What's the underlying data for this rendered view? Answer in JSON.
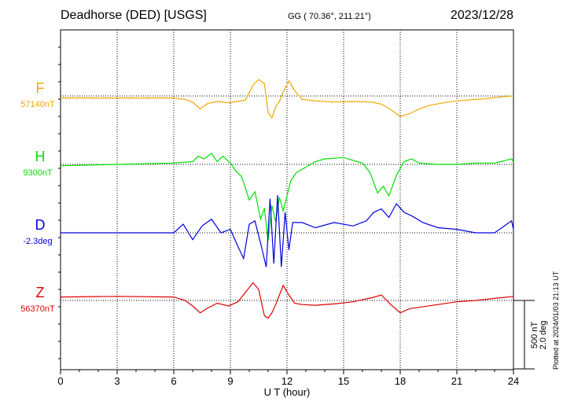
{
  "header": {
    "station": "Deadhorse (DED)  [USGS]",
    "coords": "GG ( 70.36°, 211.21°)",
    "date": "2023/12/28"
  },
  "footer": {
    "plotted": "Plotted at 2024/01/03 21:13 UT"
  },
  "chart_data": {
    "type": "line",
    "xlabel": "U T (hour)",
    "xlim": [
      0,
      24
    ],
    "xticks": [
      "0",
      "3",
      "6",
      "9",
      "12",
      "15",
      "18",
      "21",
      "24"
    ],
    "grid": "dotted vertical lines every 3 hours",
    "scale_bar": [
      "500 nT",
      "2.0 deg"
    ],
    "scale_bar_value_nT": 500,
    "scale_bar_value_deg": 2.0,
    "series": [
      {
        "name": "F",
        "baseline_label": "57140nT",
        "baseline": 57140,
        "unit": "nT",
        "color": "#f0a800",
        "x": [
          0,
          6,
          6.6,
          7,
          7.4,
          7.8,
          8.3,
          8.9,
          9.4,
          9.8,
          10.2,
          10.5,
          10.8,
          11,
          11.2,
          11.4,
          11.6,
          11.8,
          12.1,
          12.4,
          12.8,
          13.5,
          14.5,
          15.5,
          16.5,
          17,
          17.5,
          18,
          18.5,
          19,
          19.5,
          20.5,
          21.5,
          22.5,
          23.5,
          24
        ],
        "values": [
          -15,
          -15,
          -25,
          -45,
          -95,
          -55,
          -40,
          -50,
          -40,
          -30,
          80,
          120,
          90,
          -120,
          -160,
          -80,
          -40,
          30,
          110,
          40,
          -25,
          -35,
          -45,
          -40,
          -45,
          -60,
          -100,
          -150,
          -130,
          -95,
          -70,
          -45,
          -30,
          -20,
          -5,
          0
        ]
      },
      {
        "name": "H",
        "baseline_label": "9300nT",
        "baseline": 9300,
        "unit": "nT",
        "color": "#00e000",
        "x": [
          0,
          3,
          6,
          7,
          7.3,
          7.6,
          8,
          8.3,
          8.6,
          9,
          9.3,
          9.6,
          10,
          10.3,
          10.6,
          10.8,
          11,
          11.2,
          11.4,
          11.6,
          11.8,
          12,
          12.2,
          12.5,
          13,
          13.5,
          14,
          15,
          16,
          16.4,
          16.8,
          17.1,
          17.4,
          17.8,
          18.2,
          18.6,
          19,
          20,
          21,
          22,
          23,
          23.9,
          24
        ],
        "values": [
          -10,
          0,
          10,
          20,
          60,
          40,
          80,
          20,
          60,
          10,
          -50,
          -90,
          -260,
          -200,
          -400,
          -320,
          -560,
          -300,
          -420,
          -240,
          -340,
          -230,
          -120,
          -60,
          -20,
          20,
          40,
          50,
          10,
          -60,
          -210,
          -160,
          -230,
          -80,
          20,
          40,
          10,
          0,
          0,
          10,
          10,
          40,
          20
        ]
      },
      {
        "name": "D",
        "baseline_label": "-2.3deg",
        "baseline": -2.3,
        "unit": "deg",
        "color": "#0000e0",
        "x": [
          0,
          3,
          6,
          6.5,
          7,
          7.5,
          8,
          8.5,
          9,
          9.4,
          9.7,
          10,
          10.3,
          10.6,
          10.9,
          11.1,
          11.3,
          11.5,
          11.7,
          11.9,
          12.1,
          12.3,
          12.8,
          13.5,
          14.5,
          15.5,
          16.2,
          16.6,
          17,
          17.4,
          17.8,
          18.2,
          18.6,
          19.2,
          20,
          21,
          22,
          23,
          23.9,
          24
        ],
        "values": [
          0,
          0,
          0,
          0.25,
          -0.2,
          0.2,
          0.4,
          0,
          0.1,
          -0.4,
          -0.75,
          0.25,
          0.35,
          -0.3,
          -1.0,
          1.0,
          -0.9,
          1.1,
          -1.0,
          0.6,
          -0.5,
          0.3,
          0.3,
          0.15,
          0.3,
          0.2,
          0.35,
          0.6,
          0.7,
          0.45,
          0.85,
          0.6,
          0.5,
          0.3,
          0.15,
          0.1,
          0,
          0,
          0.35,
          0.1
        ]
      },
      {
        "name": "Z",
        "baseline_label": "56370nT",
        "baseline": 56370,
        "unit": "nT",
        "color": "#e00000",
        "x": [
          0,
          3,
          6,
          6.6,
          7,
          7.4,
          7.8,
          8.3,
          8.9,
          9.4,
          9.8,
          10.2,
          10.5,
          10.8,
          11,
          11.2,
          11.4,
          11.6,
          11.8,
          12.1,
          12.4,
          12.8,
          13.5,
          14.5,
          15.5,
          16.5,
          17,
          17.5,
          18,
          18.5,
          19,
          20,
          21,
          22,
          23,
          24
        ],
        "values": [
          25,
          30,
          25,
          0,
          -40,
          -90,
          -55,
          -20,
          -40,
          -10,
          60,
          130,
          80,
          -110,
          -130,
          -90,
          -30,
          40,
          110,
          40,
          -20,
          -30,
          -35,
          -25,
          -10,
          20,
          40,
          -30,
          -90,
          -60,
          -50,
          -30,
          -10,
          0,
          15,
          30
        ]
      }
    ]
  }
}
